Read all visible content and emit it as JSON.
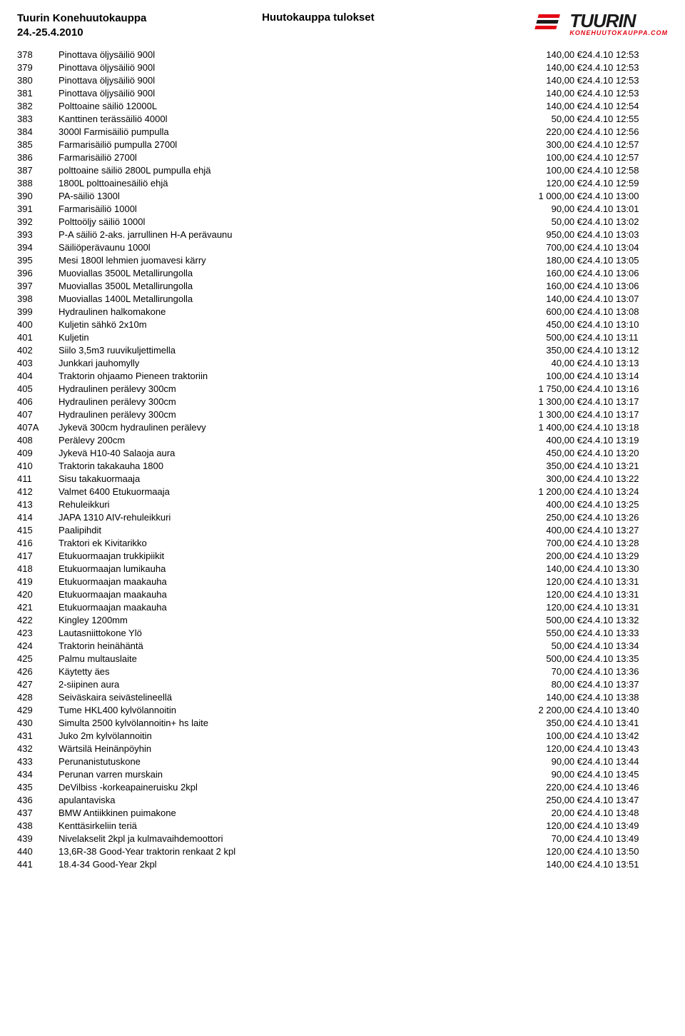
{
  "header": {
    "title_line1": "Tuurin Konehuutokauppa",
    "title_line2": "24.-25.4.2010",
    "center": "Huutokauppa tulokset",
    "logo_main": "TUURIN",
    "logo_sub": "KONEHUUTOKAUPPA.COM"
  },
  "columns": [
    "num",
    "desc",
    "price",
    "timestamp"
  ],
  "rows": [
    [
      "378",
      "Pinottava öljysäiliö 900l",
      "140,00 €",
      "24.4.10 12:53"
    ],
    [
      "379",
      "Pinottava öljysäiliö 900l",
      "140,00 €",
      "24.4.10 12:53"
    ],
    [
      "380",
      "Pinottava öljysäiliö 900l",
      "140,00 €",
      "24.4.10 12:53"
    ],
    [
      "381",
      "Pinottava öljysäiliö 900l",
      "140,00 €",
      "24.4.10 12:53"
    ],
    [
      "382",
      "Polttoaine säiliö 12000L",
      "140,00 €",
      "24.4.10 12:54"
    ],
    [
      "383",
      "Kanttinen terässäiliö 4000l",
      "50,00 €",
      "24.4.10 12:55"
    ],
    [
      "384",
      "3000l Farmisäiliö pumpulla",
      "220,00 €",
      "24.4.10 12:56"
    ],
    [
      "385",
      "Farmarisäiliö pumpulla 2700l",
      "300,00 €",
      "24.4.10 12:57"
    ],
    [
      "386",
      "Farmarisäiliö 2700l",
      "100,00 €",
      "24.4.10 12:57"
    ],
    [
      "387",
      "polttoaine säiliö 2800L pumpulla ehjä",
      "100,00 €",
      "24.4.10 12:58"
    ],
    [
      "388",
      "1800L polttoainesäiliö ehjä",
      "120,00 €",
      "24.4.10 12:59"
    ],
    [
      "390",
      "PA-säiliö 1300l",
      "1 000,00 €",
      "24.4.10 13:00"
    ],
    [
      "391",
      "Farmarisäiliö 1000l",
      "90,00 €",
      "24.4.10 13:01"
    ],
    [
      "392",
      "Polttoöljy säiliö 1000l",
      "50,00 €",
      "24.4.10 13:02"
    ],
    [
      "393",
      "P-A säiliö 2-aks. jarrullinen H-A perävaunu",
      "950,00 €",
      "24.4.10 13:03"
    ],
    [
      "394",
      "Säiliöperävaunu 1000l",
      "700,00 €",
      "24.4.10 13:04"
    ],
    [
      "395",
      "Mesi 1800l lehmien juomavesi kärry",
      "180,00 €",
      "24.4.10 13:05"
    ],
    [
      "396",
      "Muoviallas 3500L Metallirungolla",
      "160,00 €",
      "24.4.10 13:06"
    ],
    [
      "397",
      "Muoviallas 3500L Metallirungolla",
      "160,00 €",
      "24.4.10 13:06"
    ],
    [
      "398",
      "Muoviallas 1400L Metallirungolla",
      "140,00 €",
      "24.4.10 13:07"
    ],
    [
      "399",
      "Hydraulinen halkomakone",
      "600,00 €",
      "24.4.10 13:08"
    ],
    [
      "400",
      "Kuljetin sähkö 2x10m",
      "450,00 €",
      "24.4.10 13:10"
    ],
    [
      "401",
      "Kuljetin",
      "500,00 €",
      "24.4.10 13:11"
    ],
    [
      "402",
      "Siilo 3,5m3 ruuvikuljettimella",
      "350,00 €",
      "24.4.10 13:12"
    ],
    [
      "403",
      "Junkkari jauhomylly",
      "40,00 €",
      "24.4.10 13:13"
    ],
    [
      "404",
      "Traktorin ohjaamo Pieneen traktoriin",
      "100,00 €",
      "24.4.10 13:14"
    ],
    [
      "405",
      "Hydraulinen perälevy 300cm",
      "1 750,00 €",
      "24.4.10 13:16"
    ],
    [
      "406",
      "Hydraulinen perälevy 300cm",
      "1 300,00 €",
      "24.4.10 13:17"
    ],
    [
      "407",
      "Hydraulinen perälevy 300cm",
      "1 300,00 €",
      "24.4.10 13:17"
    ],
    [
      "407A",
      "Jykevä 300cm hydraulinen perälevy",
      "1 400,00 €",
      "24.4.10 13:18"
    ],
    [
      "408",
      "Perälevy 200cm",
      "400,00 €",
      "24.4.10 13:19"
    ],
    [
      "409",
      "Jykevä H10-40 Salaoja aura",
      "450,00 €",
      "24.4.10 13:20"
    ],
    [
      "410",
      "Traktorin takakauha 1800",
      "350,00 €",
      "24.4.10 13:21"
    ],
    [
      "411",
      "Sisu takakuormaaja",
      "300,00 €",
      "24.4.10 13:22"
    ],
    [
      "412",
      "Valmet 6400 Etukuormaaja",
      "1 200,00 €",
      "24.4.10 13:24"
    ],
    [
      "413",
      "Rehuleikkuri",
      "400,00 €",
      "24.4.10 13:25"
    ],
    [
      "414",
      "JAPA 1310 AIV-rehuleikkuri",
      "250,00 €",
      "24.4.10 13:26"
    ],
    [
      "415",
      "Paalipihdit",
      "400,00 €",
      "24.4.10 13:27"
    ],
    [
      "416",
      "Traktori ek Kivitarikko",
      "700,00 €",
      "24.4.10 13:28"
    ],
    [
      "417",
      "Etukuormaajan trukkipiikit",
      "200,00 €",
      "24.4.10 13:29"
    ],
    [
      "418",
      "Etukuormaajan lumikauha",
      "140,00 €",
      "24.4.10 13:30"
    ],
    [
      "419",
      "Etukuormaajan maakauha",
      "120,00 €",
      "24.4.10 13:31"
    ],
    [
      "420",
      "Etukuormaajan maakauha",
      "120,00 €",
      "24.4.10 13:31"
    ],
    [
      "421",
      "Etukuormaajan maakauha",
      "120,00 €",
      "24.4.10 13:31"
    ],
    [
      "422",
      "Kingley 1200mm",
      "500,00 €",
      "24.4.10 13:32"
    ],
    [
      "423",
      "Lautasniittokone Ylö",
      "550,00 €",
      "24.4.10 13:33"
    ],
    [
      "424",
      "Traktorin heinähäntä",
      "50,00 €",
      "24.4.10 13:34"
    ],
    [
      "425",
      "Palmu multauslaite",
      "500,00 €",
      "24.4.10 13:35"
    ],
    [
      "426",
      "Käytetty äes",
      "70,00 €",
      "24.4.10 13:36"
    ],
    [
      "427",
      "2-siipinen aura",
      "80,00 €",
      "24.4.10 13:37"
    ],
    [
      "428",
      "Seiväskaira seivästelineellä",
      "140,00 €",
      "24.4.10 13:38"
    ],
    [
      "429",
      "Tume HKL400 kylvölannoitin",
      "2 200,00 €",
      "24.4.10 13:40"
    ],
    [
      "430",
      "Simulta 2500 kylvölannoitin+ hs laite",
      "350,00 €",
      "24.4.10 13:41"
    ],
    [
      "431",
      "Juko 2m kylvölannoitin",
      "100,00 €",
      "24.4.10 13:42"
    ],
    [
      "432",
      "Wärtsilä Heinänpöyhin",
      "120,00 €",
      "24.4.10 13:43"
    ],
    [
      "433",
      "Perunanistutuskone",
      "90,00 €",
      "24.4.10 13:44"
    ],
    [
      "434",
      "Perunan varren murskain",
      "90,00 €",
      "24.4.10 13:45"
    ],
    [
      "435",
      "DeVilbiss -korkeapaineruisku 2kpl",
      "220,00 €",
      "24.4.10 13:46"
    ],
    [
      "436",
      "apulantaviska",
      "250,00 €",
      "24.4.10 13:47"
    ],
    [
      "437",
      "BMW Antiikkinen puimakone",
      "20,00 €",
      "24.4.10 13:48"
    ],
    [
      "438",
      "Kenttäsirkeliin teriä",
      "120,00 €",
      "24.4.10 13:49"
    ],
    [
      "439",
      "Nivelakselit 2kpl ja kulmavaihdemoottori",
      "70,00 €",
      "24.4.10 13:49"
    ],
    [
      "440",
      "13,6R-38 Good-Year traktorin renkaat 2 kpl",
      "120,00 €",
      "24.4.10 13:50"
    ],
    [
      "441",
      "18.4-34 Good-Year  2kpl",
      "140,00 €",
      "24.4.10 13:51"
    ]
  ],
  "style": {
    "font_family": "Arial, Helvetica, sans-serif",
    "body_font_size": 13,
    "header_font_size": 15,
    "text_color": "#000000",
    "background_color": "#ffffff",
    "logo_red": "#e30613",
    "logo_dark": "#1a1a1a",
    "col_widths": {
      "num": 58,
      "price": 110,
      "ts": 120
    }
  }
}
